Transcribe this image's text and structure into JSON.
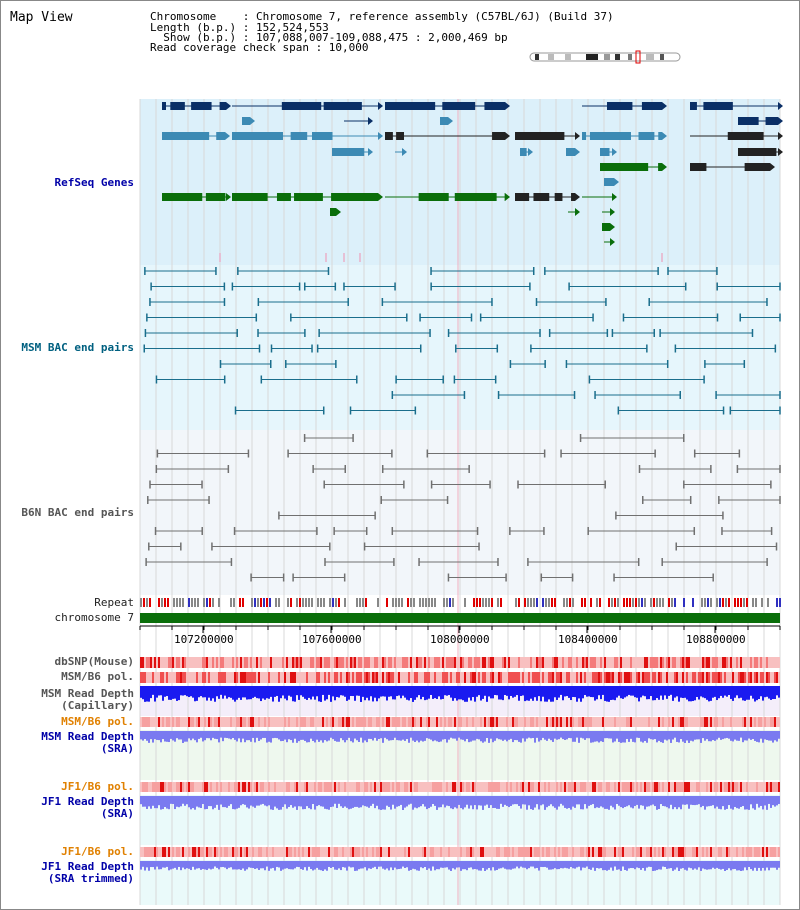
{
  "title": "Map View",
  "header": {
    "chromosome_line": "Chromosome    : Chromosome 7, reference assembly (C57BL/6J) (Build 37)",
    "length_line": "Length (b.p.) : 152,524,553",
    "show_line": "  Show (b.p.) : 107,088,007-109,088,475 : 2,000,469 bp",
    "coverage_line": "Read coverage check span : 10,000"
  },
  "tracks": {
    "refseq": "RefSeq Genes",
    "msm_bac": "MSM BAC end pairs",
    "b6n_bac": "B6N BAC end pairs",
    "repeat": "Repeat",
    "chromosome": "chromosome 7",
    "dbsnp": "dbSNP(Mouse)",
    "msm_b6_pol": "MSM/B6 pol.",
    "msm_read_depth_cap_1": "MSM Read Depth",
    "msm_read_depth_cap_2": "(Capillary)",
    "msm_b6_pol_sra": "MSM/B6 pol.",
    "msm_read_depth_sra_1": "MSM Read Depth",
    "msm_read_depth_sra_2": "(SRA)",
    "jf1_b6_pol_1": "JF1/B6 pol.",
    "jf1_read_depth_sra_1": "JF1 Read Depth",
    "jf1_read_depth_sra_2": "(SRA)",
    "jf1_b6_pol_2": "JF1/B6 pol.",
    "jf1_read_depth_trim_1": "JF1 Read Depth",
    "jf1_read_depth_trim_2": "(SRA trimmed)"
  },
  "axis": {
    "ticks": [
      "107200000",
      "107600000",
      "108000000",
      "108400000",
      "108800000"
    ]
  },
  "colors": {
    "refseq_bg": "#dcf0fa",
    "msm_bg": "#e6f6fc",
    "b6n_bg": "#f2f6fa",
    "refseq_dark": "#0a2f66",
    "refseq_mid": "#3c8ab4",
    "refseq_green": "#0a6e0a",
    "msm_line": "#1a6e8c",
    "b6n_line": "#707070",
    "chromosome": "#0a6e0a",
    "depth_blue": "#1a1af0",
    "depth_light": "#7a7af0",
    "pol_red": "#f05050"
  }
}
